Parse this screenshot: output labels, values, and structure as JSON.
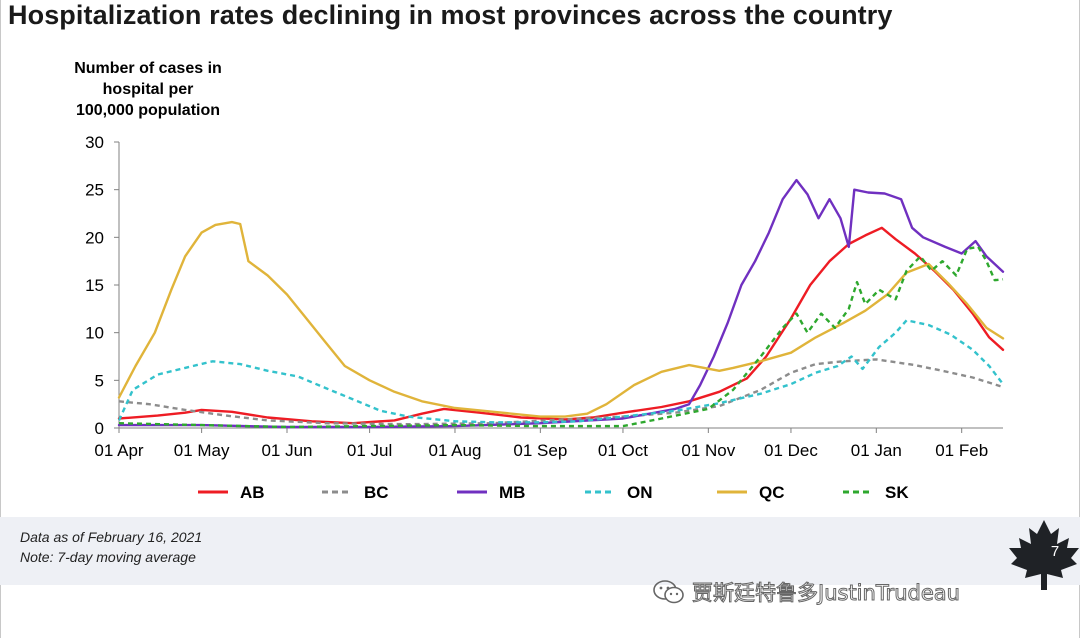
{
  "title": "Hospitalization rates declining in most provinces across the country",
  "footer": {
    "data_note": "Data as of February 16, 2021",
    "avg_note": "Note: 7-day moving average",
    "page_number": "7"
  },
  "watermark": "贾斯廷特鲁多JustinTrudeau",
  "chart_data": {
    "type": "line",
    "ylabel": "Number of cases in hospital per 100,000 population",
    "ylabel_lines": [
      "Number of cases in",
      "hospital per",
      "100,000 population"
    ],
    "ylim": [
      0,
      30
    ],
    "yticks": [
      0,
      5,
      10,
      15,
      20,
      25,
      30
    ],
    "xlim": [
      "2020-04-01",
      "2021-02-16"
    ],
    "xticks": [
      {
        "date": "2020-04-01",
        "label": "01 Apr"
      },
      {
        "date": "2020-05-01",
        "label": "01 May"
      },
      {
        "date": "2020-06-01",
        "label": "01 Jun"
      },
      {
        "date": "2020-07-01",
        "label": "01 Jul"
      },
      {
        "date": "2020-08-01",
        "label": "01 Aug"
      },
      {
        "date": "2020-09-01",
        "label": "01 Sep"
      },
      {
        "date": "2020-10-01",
        "label": "01 Oct"
      },
      {
        "date": "2020-11-01",
        "label": "01 Nov"
      },
      {
        "date": "2020-12-01",
        "label": "01 Dec"
      },
      {
        "date": "2021-01-01",
        "label": "01 Jan"
      },
      {
        "date": "2021-02-01",
        "label": "01 Feb"
      }
    ],
    "grid": false,
    "legend_position": "bottom",
    "series": [
      {
        "name": "AB",
        "color": "#ee1c24",
        "dash": "solid",
        "points": [
          [
            "2020-04-01",
            1.0
          ],
          [
            "2020-04-15",
            1.3
          ],
          [
            "2020-04-25",
            1.6
          ],
          [
            "2020-05-01",
            1.9
          ],
          [
            "2020-05-12",
            1.7
          ],
          [
            "2020-05-25",
            1.1
          ],
          [
            "2020-06-10",
            0.7
          ],
          [
            "2020-06-25",
            0.5
          ],
          [
            "2020-07-10",
            0.8
          ],
          [
            "2020-07-20",
            1.5
          ],
          [
            "2020-07-28",
            2.0
          ],
          [
            "2020-08-10",
            1.6
          ],
          [
            "2020-08-25",
            1.1
          ],
          [
            "2020-09-10",
            0.9
          ],
          [
            "2020-09-20",
            1.1
          ],
          [
            "2020-10-01",
            1.6
          ],
          [
            "2020-10-15",
            2.2
          ],
          [
            "2020-10-25",
            2.8
          ],
          [
            "2020-11-05",
            3.8
          ],
          [
            "2020-11-15",
            5.2
          ],
          [
            "2020-11-22",
            7.5
          ],
          [
            "2020-12-01",
            11.5
          ],
          [
            "2020-12-08",
            15.0
          ],
          [
            "2020-12-15",
            17.5
          ],
          [
            "2020-12-22",
            19.3
          ],
          [
            "2020-12-28",
            20.2
          ],
          [
            "2021-01-03",
            21.0
          ],
          [
            "2021-01-08",
            19.8
          ],
          [
            "2021-01-15",
            18.3
          ],
          [
            "2021-01-22",
            16.5
          ],
          [
            "2021-01-29",
            14.5
          ],
          [
            "2021-02-05",
            12.0
          ],
          [
            "2021-02-11",
            9.5
          ],
          [
            "2021-02-16",
            8.2
          ]
        ]
      },
      {
        "name": "BC",
        "color": "#8c8c8c",
        "dash": "dashed",
        "points": [
          [
            "2020-04-01",
            2.8
          ],
          [
            "2020-04-12",
            2.5
          ],
          [
            "2020-04-25",
            1.9
          ],
          [
            "2020-05-10",
            1.3
          ],
          [
            "2020-05-25",
            0.8
          ],
          [
            "2020-06-15",
            0.5
          ],
          [
            "2020-07-15",
            0.4
          ],
          [
            "2020-08-15",
            0.5
          ],
          [
            "2020-09-10",
            0.9
          ],
          [
            "2020-10-01",
            1.2
          ],
          [
            "2020-10-20",
            1.6
          ],
          [
            "2020-11-05",
            2.3
          ],
          [
            "2020-11-20",
            4.0
          ],
          [
            "2020-12-01",
            5.8
          ],
          [
            "2020-12-10",
            6.7
          ],
          [
            "2020-12-20",
            7.0
          ],
          [
            "2021-01-01",
            7.2
          ],
          [
            "2021-01-15",
            6.6
          ],
          [
            "2021-01-25",
            6.0
          ],
          [
            "2021-02-05",
            5.3
          ],
          [
            "2021-02-16",
            4.3
          ]
        ]
      },
      {
        "name": "MB",
        "color": "#7030c0",
        "dash": "solid",
        "points": [
          [
            "2020-04-01",
            0.3
          ],
          [
            "2020-05-01",
            0.3
          ],
          [
            "2020-06-01",
            0.1
          ],
          [
            "2020-07-01",
            0.1
          ],
          [
            "2020-08-01",
            0.2
          ],
          [
            "2020-09-01",
            0.5
          ],
          [
            "2020-10-01",
            1.0
          ],
          [
            "2020-10-20",
            2.0
          ],
          [
            "2020-10-25",
            2.5
          ],
          [
            "2020-10-29",
            4.5
          ],
          [
            "2020-11-03",
            7.5
          ],
          [
            "2020-11-08",
            11.0
          ],
          [
            "2020-11-13",
            15.0
          ],
          [
            "2020-11-18",
            17.5
          ],
          [
            "2020-11-23",
            20.5
          ],
          [
            "2020-11-28",
            24.0
          ],
          [
            "2020-12-03",
            26.0
          ],
          [
            "2020-12-07",
            24.5
          ],
          [
            "2020-12-11",
            22.0
          ],
          [
            "2020-12-15",
            24.0
          ],
          [
            "2020-12-19",
            22.0
          ],
          [
            "2020-12-22",
            19.0
          ],
          [
            "2020-12-24",
            25.0
          ],
          [
            "2020-12-29",
            24.7
          ],
          [
            "2021-01-04",
            24.6
          ],
          [
            "2021-01-10",
            24.0
          ],
          [
            "2021-01-14",
            21.0
          ],
          [
            "2021-01-18",
            20.0
          ],
          [
            "2021-01-26",
            19.0
          ],
          [
            "2021-02-01",
            18.3
          ],
          [
            "2021-02-06",
            19.6
          ],
          [
            "2021-02-10",
            18.0
          ],
          [
            "2021-02-16",
            16.4
          ]
        ]
      },
      {
        "name": "ON",
        "color": "#33c2cc",
        "dash": "dashed",
        "points": [
          [
            "2020-04-01",
            0.8
          ],
          [
            "2020-04-06",
            4.0
          ],
          [
            "2020-04-15",
            5.6
          ],
          [
            "2020-04-25",
            6.3
          ],
          [
            "2020-05-05",
            7.0
          ],
          [
            "2020-05-15",
            6.7
          ],
          [
            "2020-05-25",
            6.0
          ],
          [
            "2020-06-05",
            5.4
          ],
          [
            "2020-06-15",
            4.2
          ],
          [
            "2020-06-25",
            3.0
          ],
          [
            "2020-07-05",
            1.8
          ],
          [
            "2020-07-15",
            1.2
          ],
          [
            "2020-08-01",
            0.7
          ],
          [
            "2020-08-15",
            0.6
          ],
          [
            "2020-09-01",
            0.6
          ],
          [
            "2020-09-15",
            0.7
          ],
          [
            "2020-10-01",
            1.2
          ],
          [
            "2020-10-20",
            1.8
          ],
          [
            "2020-11-05",
            2.6
          ],
          [
            "2020-11-20",
            3.6
          ],
          [
            "2020-12-01",
            4.6
          ],
          [
            "2020-12-10",
            5.8
          ],
          [
            "2020-12-18",
            6.5
          ],
          [
            "2020-12-23",
            7.5
          ],
          [
            "2020-12-27",
            6.2
          ],
          [
            "2021-01-02",
            8.5
          ],
          [
            "2021-01-08",
            10.0
          ],
          [
            "2021-01-12",
            11.3
          ],
          [
            "2021-01-20",
            10.8
          ],
          [
            "2021-01-28",
            9.8
          ],
          [
            "2021-02-05",
            8.2
          ],
          [
            "2021-02-11",
            6.5
          ],
          [
            "2021-02-16",
            4.6
          ]
        ]
      },
      {
        "name": "QC",
        "color": "#e0b43a",
        "dash": "solid",
        "points": [
          [
            "2020-04-01",
            3.2
          ],
          [
            "2020-04-07",
            6.5
          ],
          [
            "2020-04-14",
            10.0
          ],
          [
            "2020-04-20",
            14.5
          ],
          [
            "2020-04-25",
            18.0
          ],
          [
            "2020-05-01",
            20.5
          ],
          [
            "2020-05-06",
            21.3
          ],
          [
            "2020-05-12",
            21.6
          ],
          [
            "2020-05-15",
            21.4
          ],
          [
            "2020-05-18",
            17.5
          ],
          [
            "2020-05-25",
            16.0
          ],
          [
            "2020-06-01",
            14.0
          ],
          [
            "2020-06-08",
            11.5
          ],
          [
            "2020-06-15",
            9.0
          ],
          [
            "2020-06-22",
            6.5
          ],
          [
            "2020-07-01",
            5.0
          ],
          [
            "2020-07-10",
            3.8
          ],
          [
            "2020-07-20",
            2.8
          ],
          [
            "2020-08-01",
            2.1
          ],
          [
            "2020-08-15",
            1.7
          ],
          [
            "2020-09-01",
            1.2
          ],
          [
            "2020-09-10",
            1.2
          ],
          [
            "2020-09-18",
            1.5
          ],
          [
            "2020-09-25",
            2.5
          ],
          [
            "2020-10-05",
            4.5
          ],
          [
            "2020-10-15",
            5.9
          ],
          [
            "2020-10-25",
            6.6
          ],
          [
            "2020-11-05",
            6.0
          ],
          [
            "2020-11-10",
            6.3
          ],
          [
            "2020-11-20",
            7.0
          ],
          [
            "2020-12-01",
            7.9
          ],
          [
            "2020-12-10",
            9.5
          ],
          [
            "2020-12-20",
            11.0
          ],
          [
            "2020-12-28",
            12.3
          ],
          [
            "2021-01-05",
            14.0
          ],
          [
            "2021-01-12",
            16.3
          ],
          [
            "2021-01-20",
            17.2
          ],
          [
            "2021-01-27",
            15.2
          ],
          [
            "2021-02-03",
            13.0
          ],
          [
            "2021-02-10",
            10.5
          ],
          [
            "2021-02-16",
            9.4
          ]
        ]
      },
      {
        "name": "SK",
        "color": "#2ea82e",
        "dash": "dashed",
        "points": [
          [
            "2020-04-01",
            0.5
          ],
          [
            "2020-05-01",
            0.3
          ],
          [
            "2020-06-01",
            0.1
          ],
          [
            "2020-07-01",
            0.2
          ],
          [
            "2020-08-01",
            0.3
          ],
          [
            "2020-09-01",
            0.2
          ],
          [
            "2020-10-01",
            0.2
          ],
          [
            "2020-10-15",
            1.0
          ],
          [
            "2020-11-01",
            2.0
          ],
          [
            "2020-11-10",
            4.0
          ],
          [
            "2020-11-20",
            7.5
          ],
          [
            "2020-11-28",
            10.5
          ],
          [
            "2020-12-03",
            12.0
          ],
          [
            "2020-12-07",
            10.0
          ],
          [
            "2020-12-12",
            12.0
          ],
          [
            "2020-12-17",
            10.5
          ],
          [
            "2020-12-22",
            12.5
          ],
          [
            "2020-12-25",
            15.3
          ],
          [
            "2020-12-28",
            13.0
          ],
          [
            "2021-01-02",
            14.5
          ],
          [
            "2021-01-08",
            13.5
          ],
          [
            "2021-01-12",
            16.5
          ],
          [
            "2021-01-17",
            18.0
          ],
          [
            "2021-01-21",
            16.5
          ],
          [
            "2021-01-25",
            17.5
          ],
          [
            "2021-01-30",
            16.0
          ],
          [
            "2021-02-03",
            18.8
          ],
          [
            "2021-02-07",
            19.0
          ],
          [
            "2021-02-10",
            17.5
          ],
          [
            "2021-02-13",
            15.5
          ],
          [
            "2021-02-16",
            15.6
          ]
        ]
      }
    ]
  }
}
